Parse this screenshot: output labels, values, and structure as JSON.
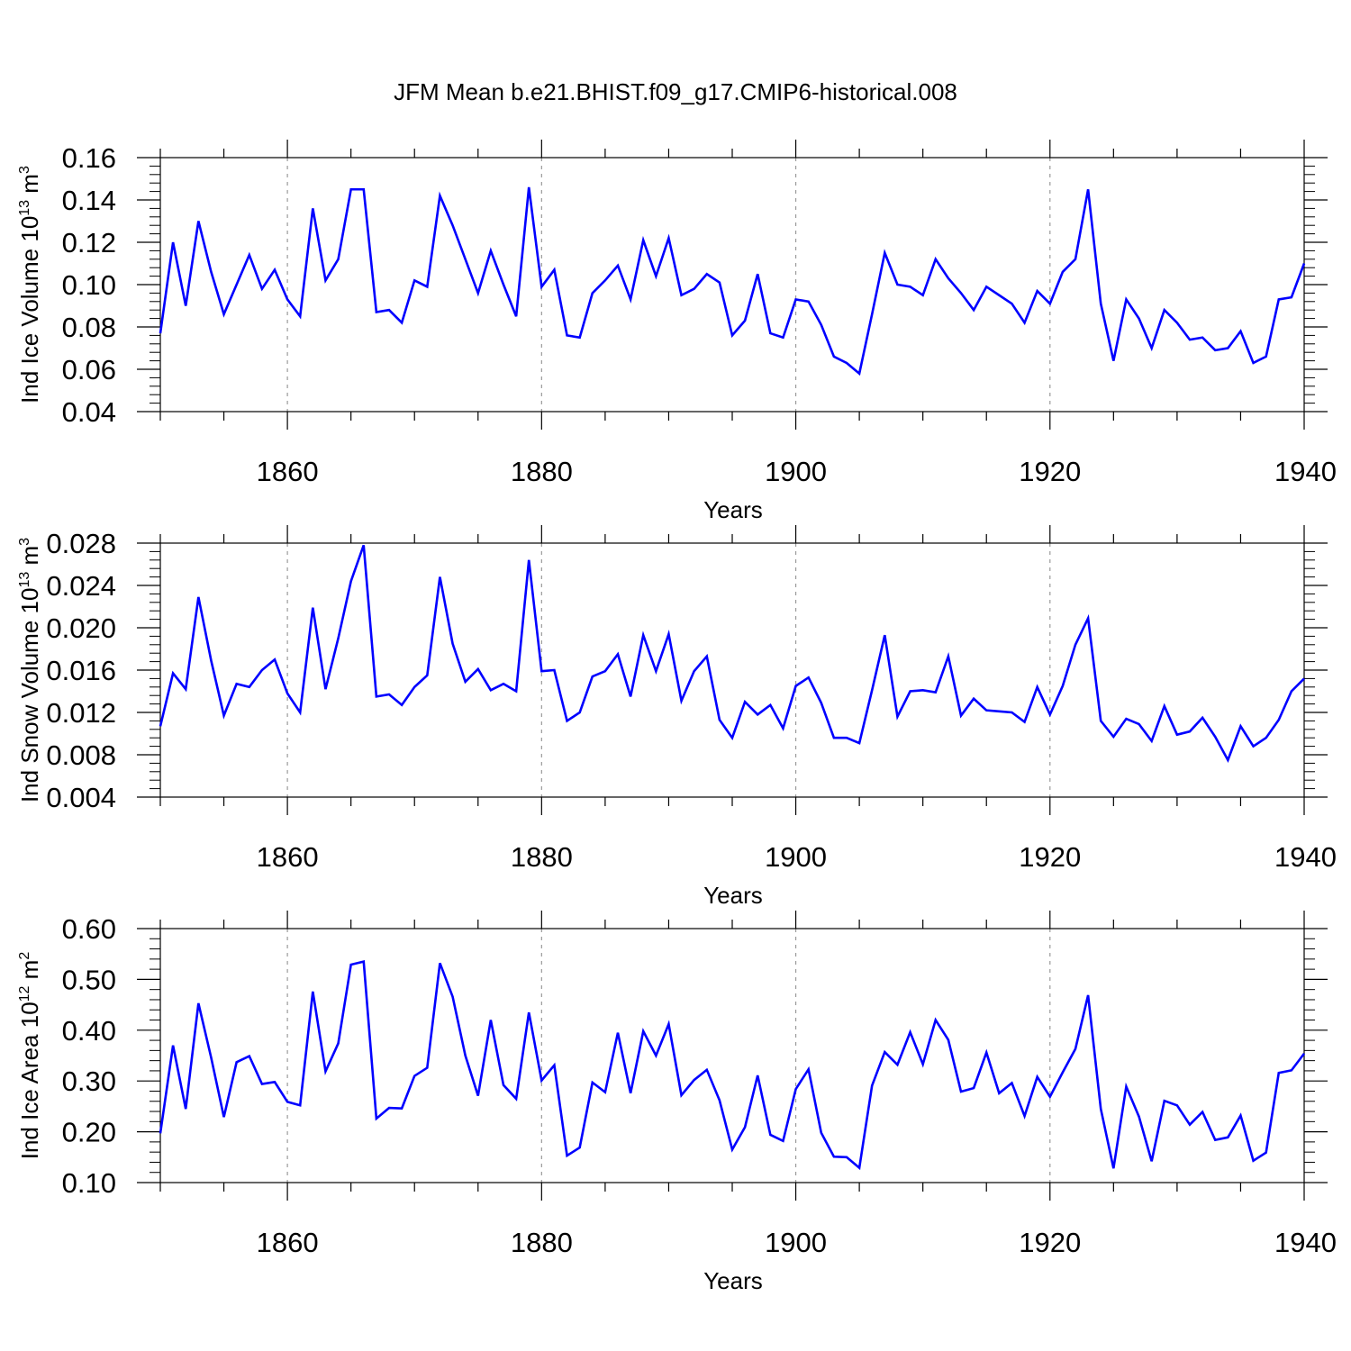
{
  "title": "JFM Mean b.e21.BHIST.f09_g17.CMIP6-historical.008",
  "colors": {
    "line": "#0000ff",
    "axis": "#000000",
    "grid": "#9a9a9a"
  },
  "chart_data": [
    {
      "type": "line",
      "title": "JFM Mean b.e21.BHIST.f09_g17.CMIP6-historical.008",
      "xlabel": "Years",
      "ylabel": {
        "text": "Ind Ice Volume 10",
        "exp": "13",
        "unit": " m",
        "unit_exp": "3"
      },
      "xlim": [
        1850,
        1940
      ],
      "ylim": [
        0.04,
        0.16
      ],
      "xticks": [
        "1860",
        "1880",
        "1900",
        "1920",
        "1940"
      ],
      "yticks": [
        "0.04",
        "0.06",
        "0.08",
        "0.10",
        "0.12",
        "0.14",
        "0.16"
      ],
      "grid": "vertical dashed at major x ticks",
      "x_start": 1850,
      "series": [
        {
          "values": [
            0.077,
            0.12,
            0.09,
            0.13,
            0.106,
            0.086,
            0.1,
            0.114,
            0.098,
            0.107,
            0.093,
            0.085,
            0.136,
            0.102,
            0.112,
            0.145,
            0.145,
            0.087,
            0.088,
            0.082,
            0.102,
            0.099,
            0.142,
            0.128,
            0.112,
            0.096,
            0.116,
            0.1,
            0.085,
            0.146,
            0.099,
            0.107,
            0.076,
            0.075,
            0.096,
            0.102,
            0.109,
            0.093,
            0.121,
            0.104,
            0.122,
            0.095,
            0.098,
            0.105,
            0.101,
            0.076,
            0.083,
            0.105,
            0.077,
            0.075,
            0.093,
            0.092,
            0.081,
            0.066,
            0.063,
            0.058,
            0.086,
            0.115,
            0.1,
            0.099,
            0.095,
            0.112,
            0.103,
            0.096,
            0.088,
            0.099,
            0.095,
            0.091,
            0.082,
            0.097,
            0.091,
            0.106,
            0.112,
            0.145,
            0.091,
            0.064,
            0.093,
            0.084,
            0.07,
            0.088,
            0.082,
            0.074,
            0.075,
            0.069,
            0.07,
            0.078,
            0.063,
            0.066,
            0.093,
            0.094,
            0.11
          ]
        }
      ]
    },
    {
      "type": "line",
      "xlabel": "Years",
      "ylabel": {
        "text": "Ind Snow Volume 10",
        "exp": "13",
        "unit": " m",
        "unit_exp": "3"
      },
      "xlim": [
        1850,
        1940
      ],
      "ylim": [
        0.004,
        0.028
      ],
      "xticks": [
        "1860",
        "1880",
        "1900",
        "1920",
        "1940"
      ],
      "yticks": [
        "0.004",
        "0.008",
        "0.012",
        "0.016",
        "0.020",
        "0.024",
        "0.028"
      ],
      "grid": "vertical dashed at major x ticks",
      "x_start": 1850,
      "series": [
        {
          "values": [
            0.0107,
            0.0157,
            0.0142,
            0.0229,
            0.0169,
            0.0117,
            0.0147,
            0.0144,
            0.016,
            0.017,
            0.0138,
            0.012,
            0.0219,
            0.0142,
            0.019,
            0.0244,
            0.0278,
            0.0135,
            0.0137,
            0.0127,
            0.0144,
            0.0155,
            0.0248,
            0.0185,
            0.0149,
            0.0161,
            0.0141,
            0.0147,
            0.014,
            0.0264,
            0.0159,
            0.016,
            0.0112,
            0.012,
            0.0154,
            0.0159,
            0.0175,
            0.0135,
            0.0193,
            0.0159,
            0.0194,
            0.0131,
            0.0159,
            0.0173,
            0.0113,
            0.0096,
            0.013,
            0.0118,
            0.0127,
            0.0105,
            0.0145,
            0.0153,
            0.0129,
            0.0096,
            0.0096,
            0.0091,
            0.0141,
            0.0193,
            0.0116,
            0.014,
            0.0141,
            0.0139,
            0.0173,
            0.0117,
            0.0133,
            0.0122,
            0.0121,
            0.012,
            0.0111,
            0.0144,
            0.0118,
            0.0145,
            0.0184,
            0.0209,
            0.0112,
            0.0097,
            0.0114,
            0.0109,
            0.0093,
            0.0126,
            0.0099,
            0.0102,
            0.0115,
            0.0097,
            0.0075,
            0.0107,
            0.0088,
            0.0096,
            0.0113,
            0.014,
            0.0152
          ]
        }
      ]
    },
    {
      "type": "line",
      "xlabel": "Years",
      "ylabel": {
        "text": "Ind Ice Area 10",
        "exp": "12",
        "unit": " m",
        "unit_exp": "2"
      },
      "xlim": [
        1850,
        1940
      ],
      "ylim": [
        0.1,
        0.6
      ],
      "xticks": [
        "1860",
        "1880",
        "1900",
        "1920",
        "1940"
      ],
      "yticks": [
        "0.10",
        "0.20",
        "0.30",
        "0.40",
        "0.50",
        "0.60"
      ],
      "grid": "vertical dashed at major x ticks",
      "x_start": 1850,
      "series": [
        {
          "values": [
            0.197,
            0.37,
            0.245,
            0.453,
            0.346,
            0.229,
            0.337,
            0.349,
            0.294,
            0.298,
            0.259,
            0.252,
            0.476,
            0.319,
            0.374,
            0.529,
            0.535,
            0.226,
            0.247,
            0.246,
            0.31,
            0.326,
            0.532,
            0.466,
            0.35,
            0.271,
            0.42,
            0.292,
            0.265,
            0.435,
            0.301,
            0.331,
            0.153,
            0.169,
            0.297,
            0.278,
            0.395,
            0.276,
            0.398,
            0.35,
            0.412,
            0.272,
            0.302,
            0.322,
            0.262,
            0.165,
            0.209,
            0.311,
            0.194,
            0.182,
            0.284,
            0.323,
            0.198,
            0.151,
            0.15,
            0.129,
            0.291,
            0.357,
            0.332,
            0.396,
            0.333,
            0.42,
            0.381,
            0.279,
            0.286,
            0.356,
            0.276,
            0.296,
            0.231,
            0.308,
            0.269,
            0.317,
            0.363,
            0.469,
            0.245,
            0.128,
            0.289,
            0.23,
            0.142,
            0.261,
            0.252,
            0.214,
            0.239,
            0.184,
            0.189,
            0.232,
            0.143,
            0.159,
            0.316,
            0.321,
            0.354
          ]
        }
      ]
    }
  ]
}
